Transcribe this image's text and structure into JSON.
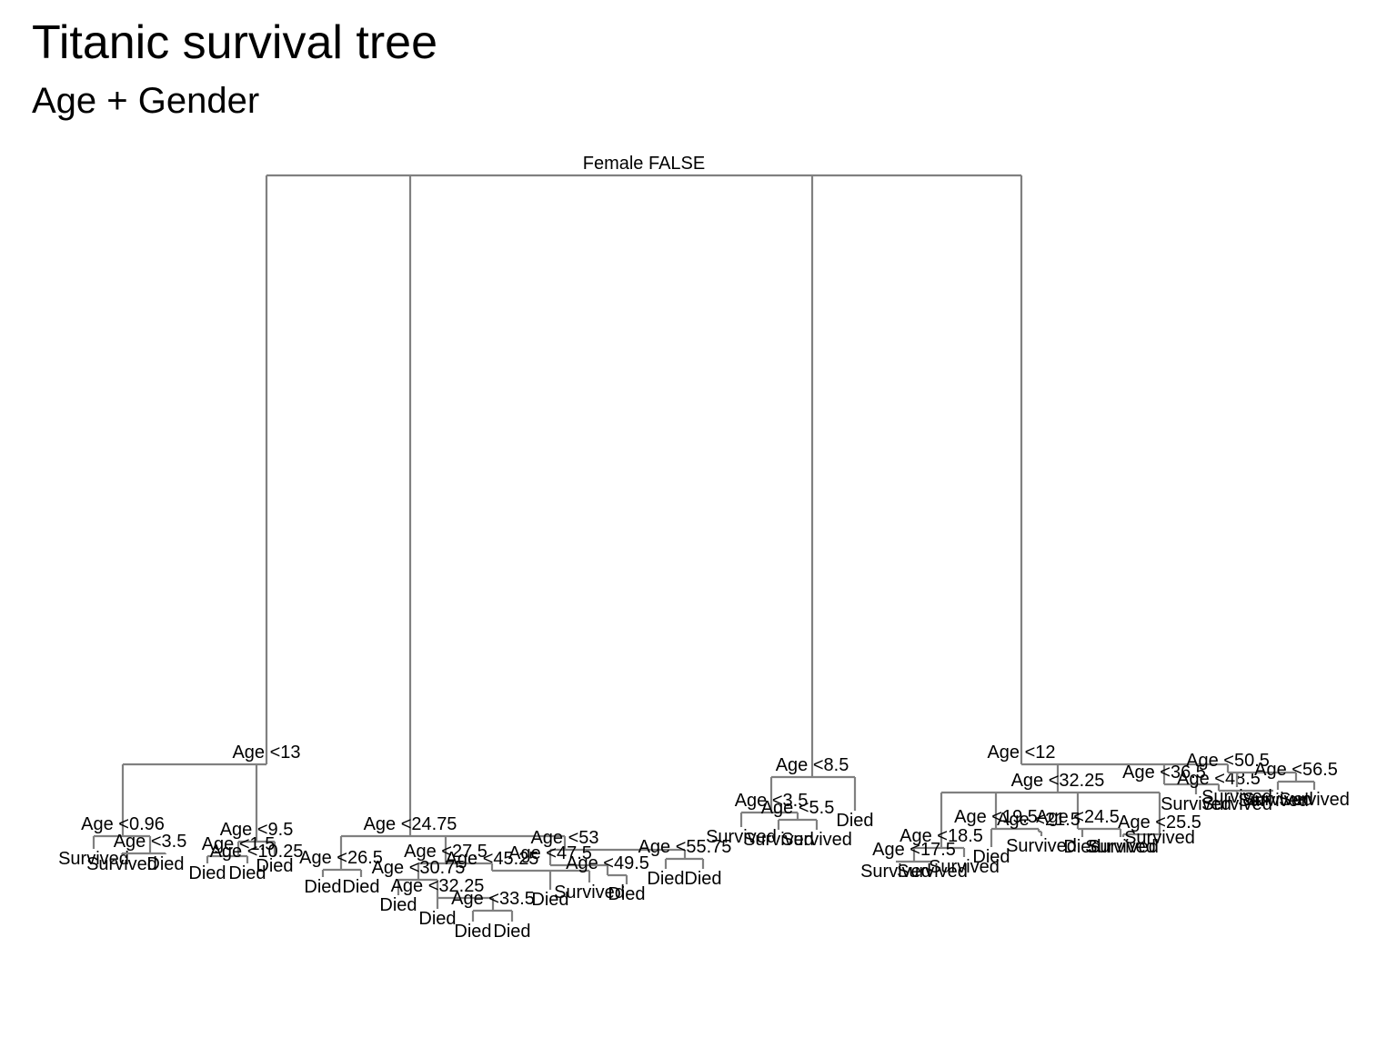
{
  "title": "Titanic survival tree",
  "subtitle": "Age + Gender",
  "colors": {
    "edge": "#808080",
    "text": "#000000",
    "background": "#ffffff"
  },
  "tree": {
    "label": "Female FALSE",
    "children": [
      {
        "label": "Age <13",
        "children": [
          {
            "label": "Age <0.96",
            "children": [
              {
                "label": "Survived"
              },
              {
                "label": "Age <3.5",
                "children": [
                  {
                    "label": "Survived"
                  },
                  {
                    "label": "Died"
                  }
                ]
              }
            ]
          },
          {
            "label": "Age <9.5",
            "children": [
              {
                "label": "Age <1.5",
                "children": [
                  {
                    "label": "Died"
                  },
                  {
                    "label": "Died"
                  }
                ]
              },
              {
                "label": "Age <10.25"
              },
              {
                "label": "Died"
              }
            ]
          }
        ]
      },
      {
        "label": "Age <24.75",
        "children": [
          {
            "label": "Age <26.5",
            "children": [
              {
                "label": "Died"
              },
              {
                "label": "Died"
              }
            ]
          },
          {
            "label": "Age <27.5",
            "children": [
              {
                "label": "Age <30.75",
                "children": [
                  {
                    "label": "Died"
                  },
                  {
                    "label": "Age <32.25",
                    "children": [
                      {
                        "label": "Died"
                      },
                      {
                        "label": "Age <33.5",
                        "children": [
                          {
                            "label": "Died"
                          },
                          {
                            "label": "Died"
                          }
                        ]
                      }
                    ]
                  }
                ]
              },
              {
                "label": "Age <45.25",
                "children": [
                  {
                    "label": "Died"
                  },
                  {
                    "label": "Survived"
                  }
                ]
              }
            ]
          },
          {
            "label": "Age <53",
            "children": [
              {
                "label": "Age <47.5",
                "children": [
                  {
                    "label": "Age <49.5",
                    "children": [
                      {
                        "label": "Died"
                      }
                    ]
                  }
                ]
              },
              {
                "label": "Age <55.75",
                "children": [
                  {
                    "label": "Died"
                  },
                  {
                    "label": "Died"
                  }
                ]
              }
            ]
          }
        ]
      },
      {
        "label": "Age <8.5",
        "children": [
          {
            "label": "Age <3.5",
            "children": [
              {
                "label": "Survived"
              },
              {
                "label": "Age <5.5",
                "children": [
                  {
                    "label": "Survived"
                  },
                  {
                    "label": "Survived"
                  }
                ]
              }
            ]
          },
          {
            "label": "Died"
          }
        ]
      },
      {
        "label": "Age <12",
        "children": [
          {
            "label": "Age <32.25",
            "children": [
              {
                "label": "Age <18.5",
                "children": [
                  {
                    "label": "Age <17.5",
                    "children": [
                      {
                        "label": "Survived"
                      },
                      {
                        "label": "Survived"
                      }
                    ]
                  },
                  {
                    "label": "Survived"
                  }
                ]
              },
              {
                "label": "Age <19.5",
                "children": [
                  {
                    "label": "Died"
                  },
                  {
                    "label": "Age <21.5",
                    "children": [
                      {
                        "label": "Survived"
                      }
                    ]
                  }
                ]
              },
              {
                "label": "Age <24.5",
                "children": [
                  {
                    "label": "Died"
                  },
                  {
                    "label": "Survived"
                  }
                ]
              },
              {
                "label": "Age <25.5",
                "children": [
                  {
                    "label": "Survived"
                  },
                  {
                    "label": "Survived"
                  }
                ]
              }
            ]
          },
          {
            "label": "Age <36.5",
            "children": [
              {
                "label": "Survived"
              },
              {
                "label": "Age <48.5",
                "children": [
                  {
                    "label": "Survived"
                  },
                  {
                    "label": "Survived"
                  }
                ]
              }
            ]
          },
          {
            "label": "Age <50.5",
            "children": [
              {
                "label": "Survived"
              },
              {
                "label": "Age <56.5",
                "children": [
                  {
                    "label": "Survived"
                  },
                  {
                    "label": "Survived"
                  }
                ]
              }
            ]
          }
        ]
      }
    ]
  }
}
